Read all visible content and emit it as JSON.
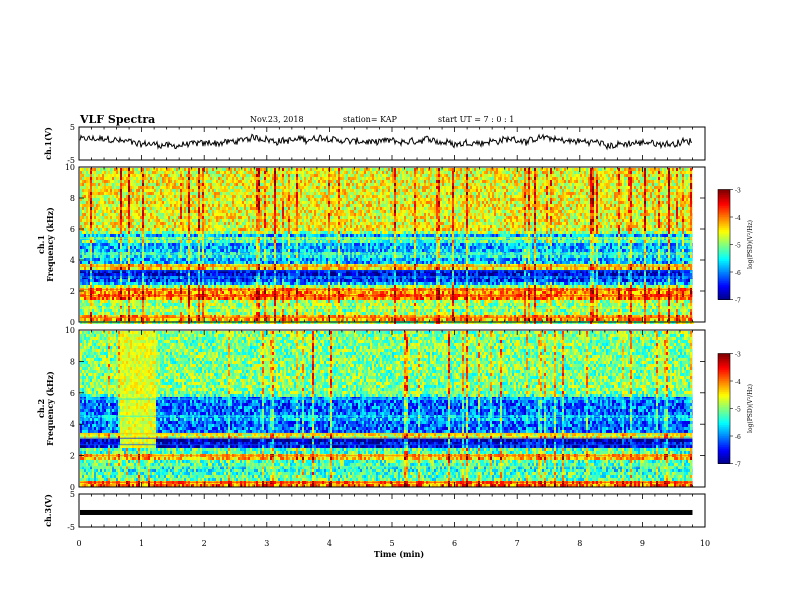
{
  "header": {
    "title": "VLF Spectra",
    "date": "Nov.23, 2018",
    "station": "station= KAP",
    "start_ut": "start  UT =   7 : 0  : 1"
  },
  "chart_data": [
    {
      "type": "line",
      "name": "ch1-waveform",
      "ylabel": "ch.1(V)",
      "ylim": [
        -5,
        5
      ],
      "yticks": [
        "5",
        "-5"
      ],
      "xlim": [
        0,
        10
      ],
      "data_end_min": 9.8,
      "baseline_value_v": 0.6,
      "noise_amplitude_v": 2.0
    },
    {
      "type": "heatmap",
      "name": "ch1-spectrogram",
      "ylabel": "ch.1\nFrequency  (kHz)",
      "ylim": [
        0,
        10
      ],
      "yticks": [
        "0",
        "2",
        "4",
        "6",
        "8",
        "10"
      ],
      "xlim": [
        0,
        10
      ],
      "data_end_min": 9.8,
      "colorbar": {
        "label": "log(PSD)(V²/Hz)",
        "range": [
          -7,
          -3
        ],
        "ticks": [
          "-3",
          "-4",
          "-5",
          "-6",
          "-7"
        ]
      },
      "bands_khz": [
        {
          "f": 0.3,
          "level": -4.2
        },
        {
          "f": 0.9,
          "level": -5.0
        },
        {
          "f": 1.7,
          "level": -4.0
        },
        {
          "f": 2.1,
          "level": -4.1
        },
        {
          "f": 2.9,
          "level": -6.3
        },
        {
          "f": 3.3,
          "level": -6.6
        },
        {
          "f": 3.6,
          "level": -4.4
        },
        {
          "f": 4.4,
          "level": -5.5
        },
        {
          "f": 5.4,
          "level": -5.2
        }
      ]
    },
    {
      "type": "heatmap",
      "name": "ch2-spectrogram",
      "ylabel": "ch.2\nFrequency  (kHz)",
      "ylim": [
        0,
        10
      ],
      "yticks": [
        "0",
        "2",
        "4",
        "6",
        "8",
        "10"
      ],
      "xlim": [
        0,
        10
      ],
      "data_end_min": 9.8,
      "colorbar": {
        "label": "log(PSD)(V²/Hz)",
        "range": [
          -7,
          -3
        ],
        "ticks": [
          "-3",
          "-4",
          "-5",
          "-6",
          "-7"
        ]
      },
      "bands_khz": [
        {
          "f": 0.3,
          "level": -4.0
        },
        {
          "f": 1.3,
          "level": -5.4
        },
        {
          "f": 2.0,
          "level": -4.3
        },
        {
          "f": 2.7,
          "level": -6.6
        },
        {
          "f": 3.1,
          "level": -6.8
        },
        {
          "f": 3.4,
          "level": -4.6
        },
        {
          "f": 4.5,
          "level": -5.8
        },
        {
          "f": 5.6,
          "level": -6.0
        }
      ]
    },
    {
      "type": "line",
      "name": "ch3-waveform",
      "ylabel": "ch.3(V)",
      "ylim": [
        -5,
        5
      ],
      "yticks": [
        "5",
        "-5"
      ],
      "xlim": [
        0,
        10
      ],
      "data_end_min": 9.8,
      "baseline_value_v": -0.6
    }
  ],
  "xaxis": {
    "label": "Time  (min)",
    "ticks": [
      "0",
      "1",
      "2",
      "3",
      "4",
      "5",
      "6",
      "7",
      "8",
      "9",
      "10"
    ],
    "range": [
      0,
      10
    ]
  }
}
